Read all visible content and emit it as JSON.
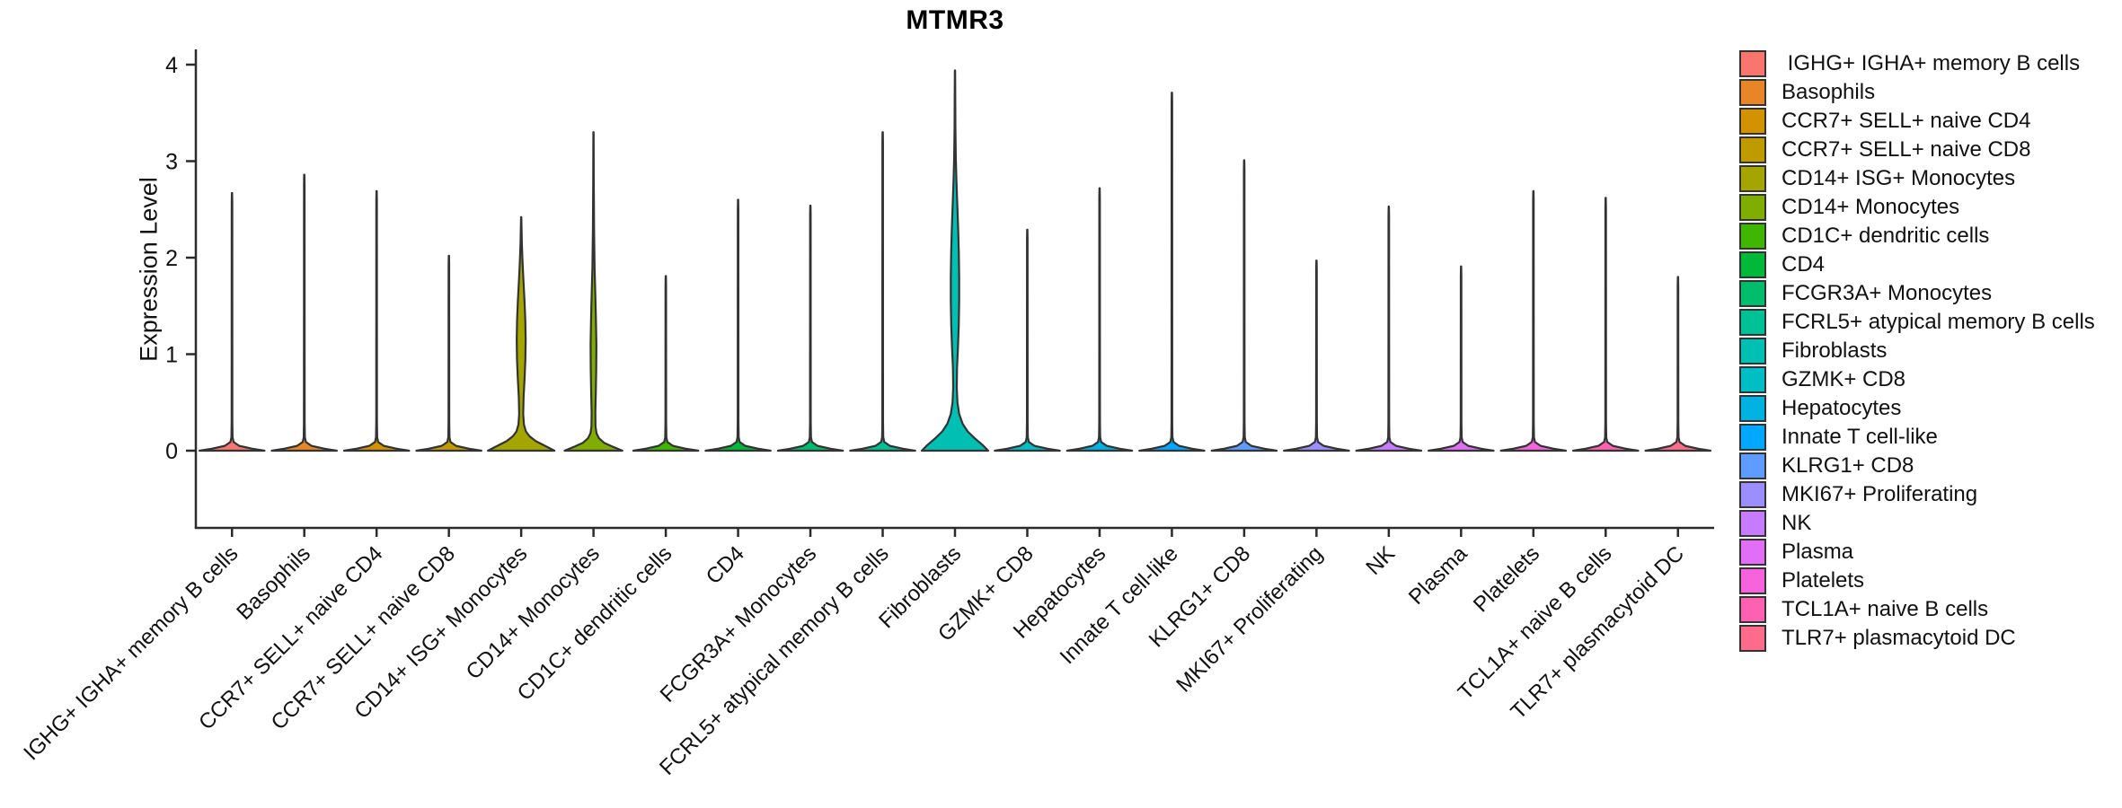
{
  "chart_data": {
    "type": "violin",
    "title": "MTMR3",
    "ylabel": "Expression Level",
    "xlabel": "",
    "ylim": [
      0,
      4
    ],
    "yticks": [
      "0",
      "1",
      "2",
      "3",
      "4"
    ],
    "grid": false,
    "x_tick_rotation": -45,
    "legend_position": "right",
    "axis_color": "#2b2b2b",
    "violin_stroke_color": "#333333",
    "categories": [
      "IGHG+ IGHA+ memory B cells",
      "Basophils",
      "CCR7+ SELL+ naive CD4",
      "CCR7+ SELL+ naive CD8",
      "CD14+ ISG+ Monocytes",
      "CD14+ Monocytes",
      "CD1C+ dendritic cells",
      "CD4",
      "FCGR3A+ Monocytes",
      "FCRL5+ atypical memory B cells",
      "Fibroblasts",
      "GZMK+ CD8",
      "Hepatocytes",
      "Innate T cell-like",
      "KLRG1+ CD8",
      "MKI67+ Proliferating",
      "NK",
      "Plasma",
      "Platelets",
      "TCL1A+ naive B cells",
      "TLR7+ plasmacytoid DC"
    ],
    "violins": [
      {
        "label": "IGHG+ IGHA+ memory B cells",
        "color": "#F8766D",
        "max_expression": 2.67,
        "profile": null
      },
      {
        "label": "Basophils",
        "color": "#E88526",
        "max_expression": 2.86,
        "profile": null
      },
      {
        "label": "CCR7+ SELL+ naive CD4",
        "color": "#D39200",
        "max_expression": 2.69,
        "profile": null
      },
      {
        "label": "CCR7+ SELL+ naive CD8",
        "color": "#BF9B00",
        "max_expression": 2.02,
        "profile": null
      },
      {
        "label": "CD14+ ISG+ Monocytes",
        "color": "#A5A500",
        "max_expression": 2.42,
        "profile": [
          [
            0,
            0.46
          ],
          [
            0.05,
            0.33
          ],
          [
            0.1,
            0.2
          ],
          [
            0.15,
            0.115
          ],
          [
            0.2,
            0.065
          ],
          [
            0.27,
            0.038
          ],
          [
            0.38,
            0.028
          ],
          [
            0.55,
            0.033
          ],
          [
            0.75,
            0.047
          ],
          [
            0.95,
            0.058
          ],
          [
            1.15,
            0.062
          ],
          [
            1.35,
            0.057
          ],
          [
            1.55,
            0.046
          ],
          [
            1.75,
            0.032
          ],
          [
            1.95,
            0.019
          ],
          [
            2.15,
            0.009
          ],
          [
            2.42,
            0.002
          ]
        ]
      },
      {
        "label": "CD14+ Monocytes",
        "color": "#7FAD00",
        "max_expression": 3.3,
        "profile": [
          [
            0,
            0.4
          ],
          [
            0.04,
            0.27
          ],
          [
            0.08,
            0.15
          ],
          [
            0.13,
            0.075
          ],
          [
            0.18,
            0.042
          ],
          [
            0.25,
            0.028
          ],
          [
            0.4,
            0.026
          ],
          [
            0.6,
            0.032
          ],
          [
            0.85,
            0.038
          ],
          [
            1.1,
            0.04
          ],
          [
            1.35,
            0.034
          ],
          [
            1.6,
            0.026
          ],
          [
            1.9,
            0.015
          ],
          [
            2.3,
            0.008
          ],
          [
            2.8,
            0.004
          ],
          [
            3.3,
            0.002
          ]
        ]
      },
      {
        "label": "CD1C+ dendritic cells",
        "color": "#3FB600",
        "max_expression": 1.81,
        "profile": null
      },
      {
        "label": "CD4",
        "color": "#00B938",
        "max_expression": 2.6,
        "profile": null
      },
      {
        "label": "FCGR3A+ Monocytes",
        "color": "#00BD6C",
        "max_expression": 2.54,
        "profile": null
      },
      {
        "label": "FCRL5+ atypical memory B cells",
        "color": "#00C095",
        "max_expression": 3.3,
        "profile": null
      },
      {
        "label": "Fibroblasts",
        "color": "#00C0B4",
        "max_expression": 3.94,
        "profile": [
          [
            0,
            0.46
          ],
          [
            0.06,
            0.38
          ],
          [
            0.13,
            0.27
          ],
          [
            0.2,
            0.175
          ],
          [
            0.28,
            0.105
          ],
          [
            0.38,
            0.058
          ],
          [
            0.5,
            0.034
          ],
          [
            0.65,
            0.025
          ],
          [
            0.85,
            0.028
          ],
          [
            1.05,
            0.04
          ],
          [
            1.3,
            0.052
          ],
          [
            1.55,
            0.058
          ],
          [
            1.8,
            0.058
          ],
          [
            2.05,
            0.053
          ],
          [
            2.3,
            0.044
          ],
          [
            2.55,
            0.032
          ],
          [
            2.8,
            0.02
          ],
          [
            3.05,
            0.011
          ],
          [
            3.35,
            0.006
          ],
          [
            3.94,
            0.002
          ]
        ]
      },
      {
        "label": "GZMK+ CD8",
        "color": "#00BEC6",
        "max_expression": 2.29,
        "profile": null
      },
      {
        "label": "Hepatocytes",
        "color": "#00B2E2",
        "max_expression": 2.72,
        "profile": null
      },
      {
        "label": "Innate T cell-like",
        "color": "#00A8FF",
        "max_expression": 3.71,
        "profile": null
      },
      {
        "label": "KLRG1+ CD8",
        "color": "#5E9DFF",
        "max_expression": 3.01,
        "profile": null
      },
      {
        "label": "MKI67+ Proliferating",
        "color": "#9C8EFF",
        "max_expression": 1.97,
        "profile": null
      },
      {
        "label": "NK",
        "color": "#C77BFF",
        "max_expression": 2.53,
        "profile": null
      },
      {
        "label": "Plasma",
        "color": "#E26EF5",
        "max_expression": 1.91,
        "profile": null
      },
      {
        "label": "Platelets",
        "color": "#F763DD",
        "max_expression": 2.69,
        "profile": null
      },
      {
        "label": "TCL1A+ naive B cells",
        "color": "#FF61B2",
        "max_expression": 2.62,
        "profile": null
      },
      {
        "label": "TLR7+ plasmacytoid DC",
        "color": "#FF6B8B",
        "max_expression": 1.8,
        "profile": null
      }
    ]
  },
  "legend": {
    "items": [
      {
        "label": " IGHG+ IGHA+ memory B cells",
        "color": "#F8766D"
      },
      {
        "label": "Basophils",
        "color": "#E88526"
      },
      {
        "label": "CCR7+ SELL+ naive CD4",
        "color": "#D39200"
      },
      {
        "label": "CCR7+ SELL+ naive CD8",
        "color": "#BF9B00"
      },
      {
        "label": "CD14+ ISG+ Monocytes",
        "color": "#A5A500"
      },
      {
        "label": "CD14+ Monocytes",
        "color": "#7FAD00"
      },
      {
        "label": "CD1C+ dendritic cells",
        "color": "#3FB600"
      },
      {
        "label": "CD4",
        "color": "#00B938"
      },
      {
        "label": "FCGR3A+ Monocytes",
        "color": "#00BD6C"
      },
      {
        "label": "FCRL5+ atypical memory B cells",
        "color": "#00C095"
      },
      {
        "label": "Fibroblasts",
        "color": "#00C0B4"
      },
      {
        "label": "GZMK+ CD8",
        "color": "#00BEC6"
      },
      {
        "label": "Hepatocytes",
        "color": "#00B2E2"
      },
      {
        "label": "Innate T cell-like",
        "color": "#00A8FF"
      },
      {
        "label": "KLRG1+ CD8",
        "color": "#5E9DFF"
      },
      {
        "label": "MKI67+ Proliferating",
        "color": "#9C8EFF"
      },
      {
        "label": "NK",
        "color": "#C77BFF"
      },
      {
        "label": "Plasma",
        "color": "#E26EF5"
      },
      {
        "label": "Platelets",
        "color": "#F763DD"
      },
      {
        "label": "TCL1A+ naive B cells",
        "color": "#FF61B2"
      },
      {
        "label": "TLR7+ plasmacytoid DC",
        "color": "#FF6B8B"
      }
    ]
  }
}
